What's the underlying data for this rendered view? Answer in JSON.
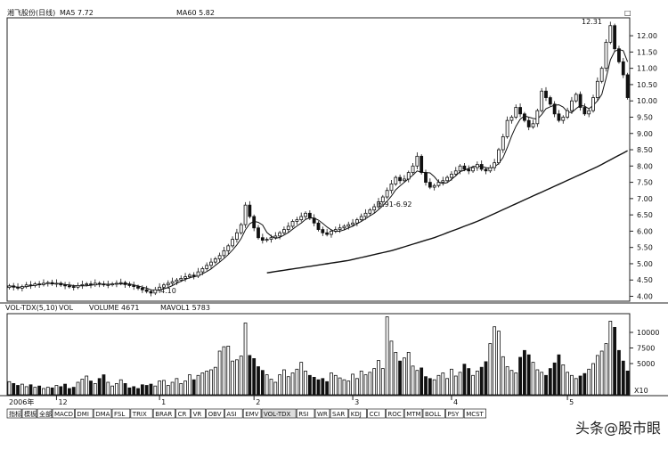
{
  "header": {
    "stock_title": "湘飞股份(日线)",
    "ma5": "MA5 7.72",
    "ma60": "MA60 5.82",
    "corner_mark": "□"
  },
  "volume_header": {
    "indicator": "VOL-TDX(5,10)",
    "vol": "VOL",
    "volume": "VOLUME 4671",
    "mavol": "MAVOL1 5783"
  },
  "annotations": {
    "high": "12.31",
    "low": "4.10",
    "mid": "6.91-6.92"
  },
  "x_axis": {
    "year": "2006年",
    "months": [
      "12",
      "1",
      "2",
      "3",
      "4",
      "5"
    ]
  },
  "tabs": [
    "指标",
    "模板",
    "全部",
    "MACD",
    "DMI",
    "DMA",
    "FSL",
    "TRIX",
    "BRAR",
    "CR",
    "VR",
    "OBV",
    "ASI",
    "EMV",
    "VOL-TDX",
    "RSI",
    "WR",
    "SAR",
    "KDJ",
    "CCI",
    "ROC",
    "MTM",
    "BOLL",
    "PSY",
    "MCST"
  ],
  "active_tab": "VOL-TDX",
  "unit_label": "X10",
  "watermark": "头条@股市眼",
  "chart_data": [
    {
      "type": "candlestick",
      "y_ticks": [
        4.0,
        4.5,
        5.0,
        5.5,
        6.0,
        6.5,
        7.0,
        7.5,
        8.0,
        8.5,
        9.0,
        9.5,
        10.0,
        10.5,
        11.0,
        11.5,
        12.0
      ],
      "ylim": [
        3.85,
        12.55
      ],
      "close": [
        4.32,
        4.28,
        4.25,
        4.3,
        4.35,
        4.33,
        4.38,
        4.36,
        4.4,
        4.42,
        4.38,
        4.4,
        4.35,
        4.32,
        4.3,
        4.28,
        4.33,
        4.36,
        4.38,
        4.35,
        4.4,
        4.38,
        4.35,
        4.36,
        4.38,
        4.4,
        4.42,
        4.36,
        4.33,
        4.3,
        4.25,
        4.2,
        4.15,
        4.1,
        4.2,
        4.28,
        4.35,
        4.4,
        4.45,
        4.5,
        4.55,
        4.6,
        4.65,
        4.62,
        4.75,
        4.85,
        4.95,
        5.05,
        5.15,
        5.25,
        5.4,
        5.55,
        5.75,
        5.95,
        6.2,
        6.8,
        6.45,
        6.1,
        5.8,
        5.72,
        5.75,
        5.8,
        5.85,
        5.95,
        6.05,
        6.15,
        6.3,
        6.35,
        6.45,
        6.55,
        6.4,
        6.25,
        6.05,
        5.95,
        5.9,
        6.0,
        6.05,
        6.1,
        6.15,
        6.2,
        6.25,
        6.35,
        6.45,
        6.55,
        6.65,
        6.75,
        6.9,
        7.05,
        7.25,
        7.45,
        7.65,
        7.55,
        7.6,
        7.8,
        8.0,
        8.3,
        7.8,
        7.5,
        7.35,
        7.4,
        7.5,
        7.55,
        7.65,
        7.75,
        7.85,
        8.0,
        7.9,
        7.85,
        7.95,
        8.05,
        7.9,
        7.85,
        7.95,
        8.1,
        8.5,
        8.9,
        9.4,
        9.5,
        9.8,
        9.6,
        9.4,
        9.2,
        9.3,
        9.7,
        10.3,
        10.1,
        9.9,
        9.6,
        9.4,
        9.5,
        9.7,
        10.0,
        10.2,
        9.8,
        9.6,
        9.7,
        10.1,
        10.6,
        11.0,
        11.8,
        12.31,
        11.6,
        11.2,
        10.8,
        10.1
      ],
      "series": [
        {
          "name": "MA5",
          "values": [
            4.32,
            4.3,
            4.28,
            4.28,
            4.3,
            4.32,
            4.34,
            4.36,
            4.38,
            4.4,
            4.39,
            4.39,
            4.39,
            4.36,
            4.35,
            4.33,
            4.32,
            4.32,
            4.32,
            4.34,
            4.36,
            4.37,
            4.37,
            4.37,
            4.37,
            4.38,
            4.38,
            4.38,
            4.38,
            4.35,
            4.32,
            4.28,
            4.25,
            4.2,
            4.18,
            4.19,
            4.23,
            4.27,
            4.33,
            4.4,
            4.46,
            4.52,
            4.57,
            4.6,
            4.63,
            4.69,
            4.76,
            4.84,
            4.95,
            5.05,
            5.16,
            5.28,
            5.42,
            5.58,
            5.77,
            6.04,
            6.23,
            6.3,
            6.27,
            6.19,
            5.96,
            5.85,
            5.78,
            5.81,
            5.88,
            5.96,
            6.06,
            6.16,
            6.25,
            6.36,
            6.41,
            6.4,
            6.34,
            6.24,
            6.13,
            6.04,
            5.99,
            6.0,
            6.04,
            6.1,
            6.15,
            6.23,
            6.3,
            6.38,
            6.47,
            6.55,
            6.66,
            6.78,
            6.92,
            7.08,
            7.27,
            7.39,
            7.5,
            7.61,
            7.72,
            7.85,
            7.81,
            7.8,
            7.79,
            7.67,
            7.51,
            7.46,
            7.49,
            7.59,
            7.7,
            7.83,
            7.87,
            7.93,
            7.98,
            8.0,
            7.99,
            7.95,
            7.93,
            7.97,
            8.08,
            8.26,
            8.57,
            8.92,
            9.22,
            9.44,
            9.54,
            9.5,
            9.46,
            9.44,
            9.58,
            9.76,
            9.82,
            9.87,
            9.88,
            9.81,
            9.66,
            9.64,
            9.76,
            9.86,
            9.84,
            9.76,
            9.86,
            10.0,
            10.2,
            10.7,
            11.26,
            11.52,
            11.58,
            11.54,
            11.2
          ]
        },
        {
          "name": "MA60",
          "values": [
            null,
            null,
            null,
            null,
            null,
            null,
            null,
            null,
            null,
            null,
            null,
            null,
            null,
            null,
            null,
            null,
            null,
            null,
            null,
            null,
            null,
            null,
            null,
            null,
            null,
            null,
            null,
            null,
            null,
            null,
            null,
            null,
            null,
            null,
            null,
            null,
            null,
            null,
            null,
            null,
            null,
            null,
            null,
            null,
            null,
            null,
            null,
            null,
            null,
            null,
            null,
            null,
            null,
            null,
            null,
            null,
            null,
            null,
            null,
            null,
            4.72,
            4.74,
            4.76,
            4.78,
            4.8,
            4.82,
            4.84,
            4.86,
            4.88,
            4.9,
            4.92,
            4.94,
            4.96,
            4.98,
            5.0,
            5.02,
            5.04,
            5.06,
            5.08,
            5.1,
            5.13,
            5.16,
            5.19,
            5.22,
            5.25,
            5.28,
            5.31,
            5.34,
            5.37,
            5.4,
            5.44,
            5.48,
            5.52,
            5.56,
            5.6,
            5.64,
            5.68,
            5.72,
            5.76,
            5.8,
            5.85,
            5.9,
            5.95,
            6.0,
            6.05,
            6.1,
            6.15,
            6.2,
            6.25,
            6.3,
            6.36,
            6.42,
            6.48,
            6.54,
            6.6,
            6.66,
            6.72,
            6.78,
            6.84,
            6.9,
            6.96,
            7.02,
            7.08,
            7.14,
            7.2,
            7.26,
            7.32,
            7.38,
            7.44,
            7.5,
            7.56,
            7.62,
            7.68,
            7.74,
            7.8,
            7.86,
            7.92,
            7.98,
            8.05,
            8.12,
            8.19,
            8.26,
            8.33,
            8.4,
            8.47
          ]
        }
      ]
    },
    {
      "type": "bar",
      "title": "VOL-TDX(5,10)",
      "y_ticks": [
        5000,
        7500,
        10000
      ],
      "ylim": [
        0,
        13000
      ],
      "values": [
        2100,
        1800,
        1500,
        1700,
        1300,
        1600,
        1200,
        1400,
        1000,
        1200,
        1100,
        1500,
        1300,
        1700,
        1000,
        1200,
        2000,
        2500,
        3000,
        2200,
        1800,
        2600,
        3200,
        2000,
        1400,
        1800,
        2400,
        1800,
        1100,
        1300,
        1000,
        1600,
        1500,
        1700,
        1400,
        2200,
        2300,
        1500,
        2000,
        2600,
        1800,
        2200,
        3200,
        2400,
        3100,
        3500,
        3800,
        4000,
        4400,
        7000,
        7700,
        7800,
        5400,
        5600,
        6200,
        11500,
        6300,
        5800,
        4500,
        3900,
        3200,
        2500,
        2000,
        3200,
        4000,
        2900,
        3500,
        4100,
        5200,
        3800,
        3100,
        2800,
        2400,
        2600,
        2100,
        3500,
        3100,
        2700,
        2400,
        2200,
        3300,
        2600,
        3800,
        3200,
        3600,
        4200,
        5500,
        4200,
        12500,
        8600,
        6800,
        5400,
        5900,
        6800,
        4600,
        3900,
        4300,
        2900,
        2600,
        2400,
        3100,
        3500,
        2600,
        4100,
        3000,
        3600,
        4900,
        4200,
        3100,
        3800,
        4400,
        5300,
        8200,
        10900,
        10200,
        6100,
        4500,
        3900,
        3500,
        6000,
        7100,
        6400,
        5200,
        4000,
        3600,
        3100,
        4200,
        5100,
        6400,
        4800,
        3600,
        3100,
        2600,
        3000,
        3400,
        4100,
        5000,
        6300,
        7000,
        8200,
        11800,
        10800,
        7100,
        5400,
        3800
      ]
    }
  ]
}
